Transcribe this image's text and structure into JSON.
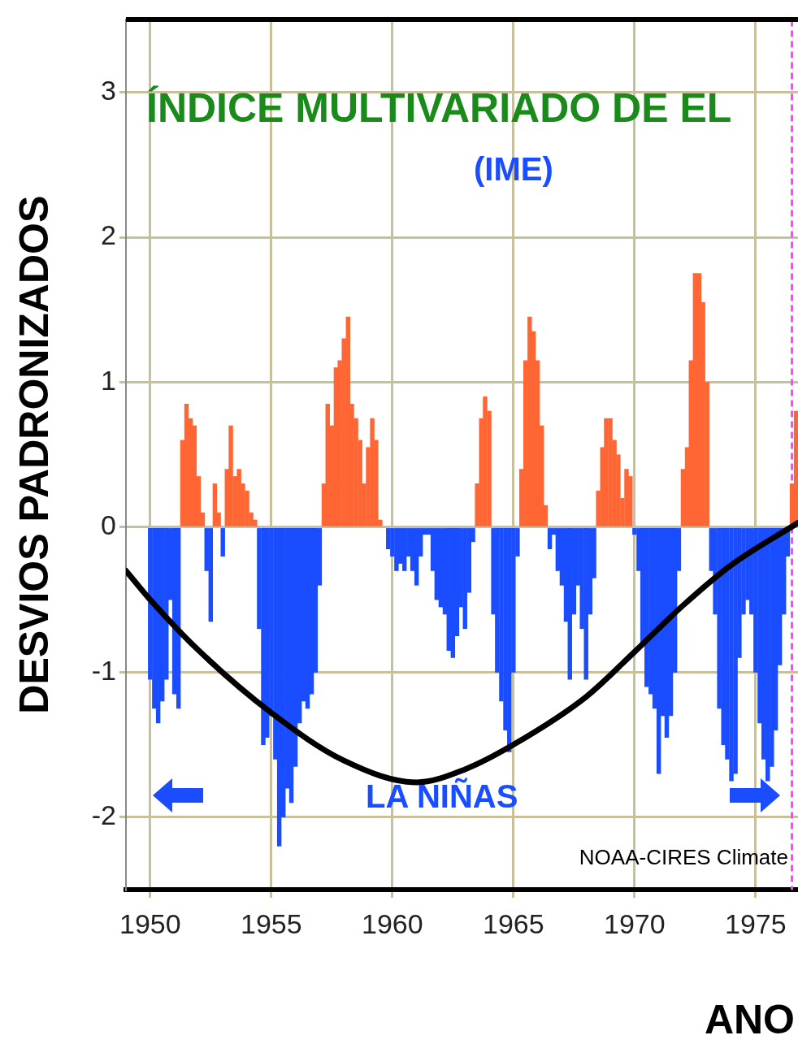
{
  "chart_data": {
    "type": "bar",
    "title": "ÍNDICE MULTIVARIADO DE EL",
    "subtitle": "(IME)",
    "xlabel": "ANO",
    "ylabel": "DESVIOS PADRONIZADOS",
    "annotations": [
      "LA NIÑAS",
      "NOAA-CIRES Climate"
    ],
    "xlim": [
      1949,
      1976.75
    ],
    "xticks": [
      1950,
      1955,
      1960,
      1965,
      1970,
      1975
    ],
    "ylim": [
      -2.5,
      3.5
    ],
    "yticks": [
      -2,
      -1,
      0,
      1,
      2,
      3
    ],
    "grid": true,
    "legend": false,
    "ref_lines": [
      {
        "axis": "x",
        "value": 1976.5,
        "color": "#ff44ff",
        "line_style": "dashed"
      }
    ],
    "series": [
      {
        "color": "#ff6633",
        "x": [
          1951.33,
          1951.5,
          1951.67,
          1951.83,
          1952,
          1952.17,
          1952.67,
          1952.83,
          1953.17,
          1953.33,
          1953.5,
          1953.67,
          1953.83,
          1954,
          1954.17,
          1954.33,
          1957.17,
          1957.33,
          1957.5,
          1957.67,
          1957.83,
          1958,
          1958.17,
          1958.33,
          1958.5,
          1958.67,
          1958.83,
          1959,
          1959.17,
          1959.33,
          1959.5,
          1963.5,
          1963.67,
          1963.83,
          1964,
          1965.33,
          1965.5,
          1965.67,
          1965.83,
          1966,
          1966.17,
          1966.33,
          1968.5,
          1968.67,
          1968.83,
          1969,
          1969.17,
          1969.33,
          1969.5,
          1969.67,
          1969.83,
          1972,
          1972.17,
          1972.33,
          1972.5,
          1972.67,
          1972.83,
          1973,
          1976.5,
          1976.67
        ],
        "values": [
          0.6,
          0.85,
          0.75,
          0.7,
          0.35,
          0.1,
          0.3,
          0.1,
          0.4,
          0.7,
          0.35,
          0.4,
          0.3,
          0.25,
          0.1,
          0.05,
          0.3,
          0.85,
          0.7,
          1.1,
          1.15,
          1.3,
          1.45,
          0.85,
          0.75,
          0.6,
          0.3,
          0.55,
          0.75,
          0.6,
          0.05,
          0.3,
          0.75,
          0.9,
          0.8,
          0.4,
          1.15,
          1.45,
          1.35,
          1.15,
          0.7,
          0.15,
          0.25,
          0.55,
          0.75,
          0.75,
          0.6,
          0.5,
          0.2,
          0.4,
          0.35,
          0.4,
          0.55,
          1.15,
          1.75,
          1.75,
          1.55,
          1,
          0.3,
          0.8
        ]
      },
      {
        "color": "#1a4dff",
        "x": [
          1950,
          1950.17,
          1950.33,
          1950.5,
          1950.67,
          1950.83,
          1951,
          1951.17,
          1952.33,
          1952.5,
          1953,
          1954.5,
          1954.67,
          1954.83,
          1955,
          1955.17,
          1955.33,
          1955.5,
          1955.67,
          1955.83,
          1956,
          1956.17,
          1956.33,
          1956.5,
          1956.67,
          1956.83,
          1957,
          1959.83,
          1960,
          1960.17,
          1960.33,
          1960.5,
          1960.67,
          1960.83,
          1961,
          1961.17,
          1961.33,
          1961.5,
          1961.67,
          1961.83,
          1962,
          1962.17,
          1962.33,
          1962.5,
          1962.67,
          1962.83,
          1963,
          1963.17,
          1963.33,
          1964.17,
          1964.33,
          1964.5,
          1964.67,
          1964.83,
          1965,
          1965.17,
          1966.5,
          1966.67,
          1966.83,
          1967,
          1967.17,
          1967.33,
          1967.5,
          1967.67,
          1967.83,
          1968,
          1968.17,
          1968.33,
          1970,
          1970.17,
          1970.33,
          1970.5,
          1970.67,
          1970.83,
          1971,
          1971.17,
          1971.33,
          1971.5,
          1971.67,
          1971.83,
          1973.17,
          1973.33,
          1973.5,
          1973.67,
          1973.83,
          1974,
          1974.17,
          1974.33,
          1974.5,
          1974.67,
          1974.83,
          1975,
          1975.17,
          1975.33,
          1975.5,
          1975.67,
          1975.83,
          1976,
          1976.17,
          1976.33
        ],
        "values": [
          -1.05,
          -1.25,
          -1.35,
          -1.2,
          -1.05,
          -0.5,
          -1.15,
          -1.25,
          -0.3,
          -0.65,
          -0.2,
          -0.7,
          -1.5,
          -1.45,
          -1.3,
          -1.6,
          -2.2,
          -2,
          -1.8,
          -1.9,
          -1.65,
          -1.35,
          -1.2,
          -1.25,
          -1.15,
          -1,
          -0.4,
          -0.15,
          -0.2,
          -0.3,
          -0.25,
          -0.3,
          -0.2,
          -0.3,
          -0.4,
          -0.2,
          -0.05,
          -0.05,
          -0.3,
          -0.5,
          -0.55,
          -0.6,
          -0.85,
          -0.9,
          -0.75,
          -0.55,
          -0.7,
          -0.45,
          -0.1,
          -0.6,
          -1,
          -1.2,
          -1.4,
          -1.55,
          -1,
          -0.2,
          -0.15,
          -0.05,
          -0.3,
          -0.4,
          -0.65,
          -1.05,
          -0.6,
          -0.4,
          -0.7,
          -1.05,
          -0.6,
          -0.35,
          -0.05,
          -0.3,
          -0.8,
          -1.1,
          -1.15,
          -1.25,
          -1.7,
          -1.3,
          -1.45,
          -1.3,
          -1,
          -0.3,
          -0.3,
          -0.6,
          -1.25,
          -1.5,
          -1.6,
          -1.75,
          -1.7,
          -0.9,
          -0.6,
          -0.5,
          -0.6,
          -1,
          -1.35,
          -1.6,
          -1.75,
          -1.65,
          -1.4,
          -0.95,
          -0.6,
          -0.2
        ]
      },
      {
        "type": "line",
        "color": "#000000",
        "x": [
          1949,
          1950,
          1952,
          1955,
          1958,
          1961,
          1963,
          1965,
          1968,
          1970,
          1972,
          1974,
          1976.75
        ],
        "values": [
          -0.3,
          -0.5,
          -0.85,
          -1.28,
          -1.61,
          -1.76,
          -1.67,
          -1.5,
          -1.17,
          -0.86,
          -0.54,
          -0.26,
          0.03
        ]
      }
    ]
  }
}
